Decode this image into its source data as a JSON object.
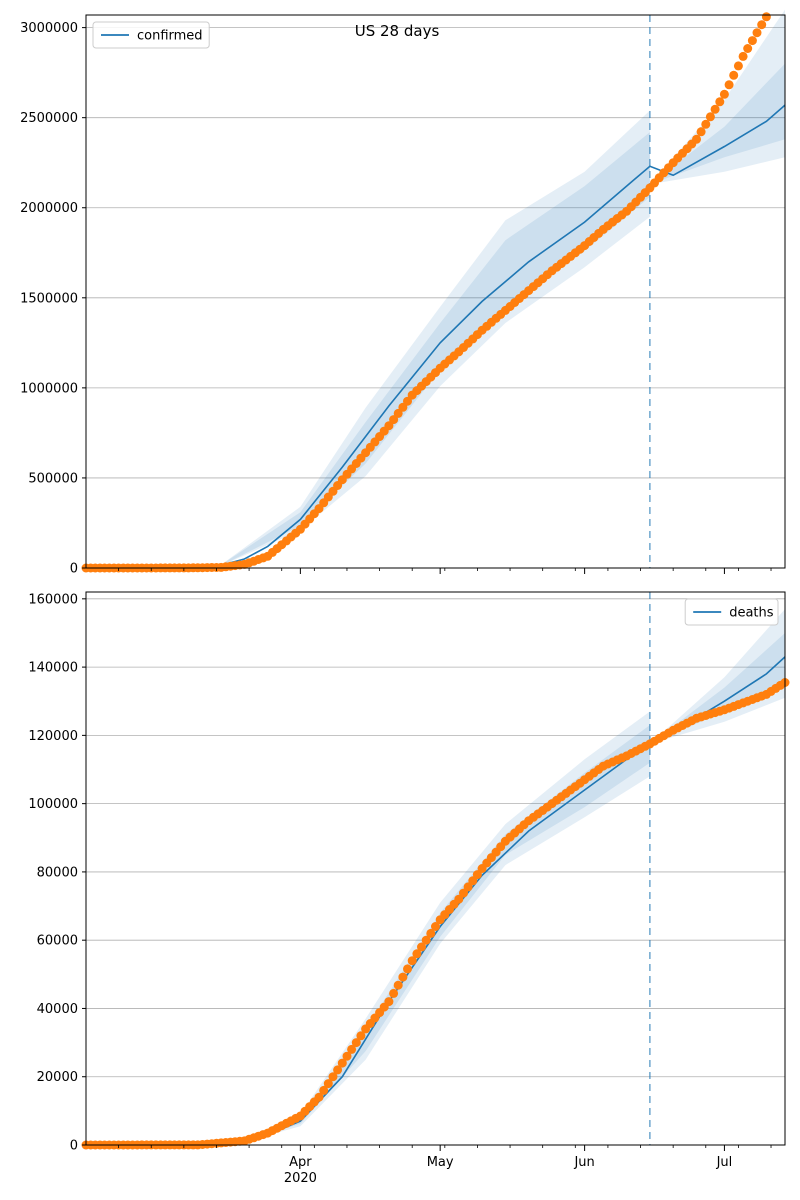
{
  "figure": {
    "title": "US 28 days",
    "x_axis": {
      "type": "date",
      "start": "2020-02-15",
      "end": "2020-07-14",
      "major_ticks": [
        {
          "date": "2020-04-01",
          "label": "Apr",
          "sublabel": "2020"
        },
        {
          "date": "2020-05-01",
          "label": "May",
          "sublabel": ""
        },
        {
          "date": "2020-06-01",
          "label": "Jun",
          "sublabel": ""
        },
        {
          "date": "2020-07-01",
          "label": "Jul",
          "sublabel": ""
        }
      ]
    },
    "forecast_start": "2020-06-15"
  },
  "colors": {
    "model_line": "#1f77b4",
    "band": "#1f77b4",
    "observed": "#ff7f0e",
    "forecast_marker": "#1f77b4",
    "grid": "#b0b0b0"
  },
  "chart_data": [
    {
      "type": "line",
      "series": [
        {
          "name": "confirmed",
          "role": "model",
          "x": [
            "2020-02-15",
            "2020-03-01",
            "2020-03-15",
            "2020-03-20",
            "2020-03-25",
            "2020-04-01",
            "2020-04-10",
            "2020-04-20",
            "2020-05-01",
            "2020-05-10",
            "2020-05-20",
            "2020-06-01",
            "2020-06-10",
            "2020-06-15",
            "2020-06-20",
            "2020-07-01",
            "2020-07-10",
            "2020-07-14"
          ],
          "y": [
            0,
            2000,
            15000,
            50000,
            120000,
            270000,
            560000,
            900000,
            1250000,
            1480000,
            1700000,
            1920000,
            2120000,
            2230000,
            2180000,
            2340000,
            2480000,
            2570000
          ],
          "bands": [
            {
              "x": [
                "2020-03-15",
                "2020-04-01",
                "2020-04-15",
                "2020-05-01",
                "2020-05-15",
                "2020-06-01",
                "2020-06-15"
              ],
              "low": [
                12000,
                210000,
                510000,
                1010000,
                1360000,
                1670000,
                1950000
              ],
              "high": [
                18000,
                340000,
                890000,
                1450000,
                1930000,
                2200000,
                2540000
              ]
            },
            {
              "x": [
                "2020-03-15",
                "2020-04-01",
                "2020-04-15",
                "2020-05-01",
                "2020-05-15",
                "2020-06-01",
                "2020-06-15"
              ],
              "low": [
                13000,
                235000,
                580000,
                1100000,
                1450000,
                1760000,
                2060000
              ],
              "high": [
                17000,
                310000,
                810000,
                1360000,
                1820000,
                2120000,
                2420000
              ]
            },
            {
              "x": [
                "2020-06-15",
                "2020-07-01",
                "2020-07-14"
              ],
              "low": [
                2130000,
                2200000,
                2280000
              ],
              "high": [
                2130000,
                2600000,
                3100000
              ]
            },
            {
              "x": [
                "2020-06-15",
                "2020-07-01",
                "2020-07-14"
              ],
              "low": [
                2130000,
                2280000,
                2380000
              ],
              "high": [
                2130000,
                2450000,
                2800000
              ]
            }
          ]
        },
        {
          "name": "",
          "role": "observed",
          "x": [
            "2020-02-15",
            "2020-03-01",
            "2020-03-10",
            "2020-03-15",
            "2020-03-20",
            "2020-03-25",
            "2020-04-01",
            "2020-04-05",
            "2020-04-10",
            "2020-04-15",
            "2020-04-20",
            "2020-04-25",
            "2020-05-01",
            "2020-05-05",
            "2020-05-10",
            "2020-05-15",
            "2020-05-20",
            "2020-05-25",
            "2020-06-01",
            "2020-06-05",
            "2020-06-10",
            "2020-06-15",
            "2020-06-20",
            "2020-06-25",
            "2020-07-01",
            "2020-07-05",
            "2020-07-10"
          ],
          "y": [
            0,
            200,
            1000,
            3500,
            20000,
            65000,
            215000,
            330000,
            490000,
            640000,
            790000,
            960000,
            1110000,
            1200000,
            1320000,
            1430000,
            1540000,
            1650000,
            1790000,
            1880000,
            1980000,
            2110000,
            2250000,
            2380000,
            2630000,
            2840000,
            3060000
          ]
        }
      ],
      "legend": {
        "entries": [
          "confirmed"
        ],
        "placement": "top-left"
      },
      "ylim": [
        0,
        3070000
      ],
      "yticks": [
        0,
        500000,
        1000000,
        1500000,
        2000000,
        2500000,
        3000000
      ],
      "ytick_labels": [
        "0",
        "500000",
        "1000000",
        "1500000",
        "2000000",
        "2500000",
        "3000000"
      ],
      "grid": "y"
    },
    {
      "type": "line",
      "series": [
        {
          "name": "deaths",
          "role": "model",
          "x": [
            "2020-02-15",
            "2020-03-15",
            "2020-03-25",
            "2020-04-01",
            "2020-04-10",
            "2020-04-20",
            "2020-05-01",
            "2020-05-10",
            "2020-05-20",
            "2020-06-01",
            "2020-06-10",
            "2020-06-15",
            "2020-06-20",
            "2020-07-01",
            "2020-07-10",
            "2020-07-14"
          ],
          "y": [
            0,
            600,
            3000,
            7000,
            20000,
            42000,
            64000,
            79000,
            92000,
            104000,
            113000,
            117500,
            121000,
            130000,
            138000,
            143000
          ],
          "bands": [
            {
              "x": [
                "2020-03-20",
                "2020-04-01",
                "2020-04-15",
                "2020-05-01",
                "2020-05-15",
                "2020-06-01",
                "2020-06-15"
              ],
              "low": [
                1000,
                5500,
                25000,
                59000,
                82000,
                96000,
                108000
              ],
              "high": [
                1600,
                9000,
                37000,
                71000,
                94000,
                113000,
                127000
              ]
            },
            {
              "x": [
                "2020-03-20",
                "2020-04-01",
                "2020-04-15",
                "2020-05-01",
                "2020-05-15",
                "2020-06-01",
                "2020-06-15"
              ],
              "low": [
                1100,
                6200,
                27500,
                61000,
                85000,
                99000,
                112000
              ],
              "high": [
                1500,
                8200,
                34000,
                68000,
                91000,
                109000,
                123000
              ]
            },
            {
              "x": [
                "2020-06-15",
                "2020-07-01",
                "2020-07-14"
              ],
              "low": [
                117500,
                124000,
                131000
              ],
              "high": [
                117500,
                137000,
                157000
              ]
            },
            {
              "x": [
                "2020-06-15",
                "2020-07-01",
                "2020-07-14"
              ],
              "low": [
                117500,
                127000,
                135000
              ],
              "high": [
                117500,
                134000,
                150000
              ]
            }
          ]
        },
        {
          "name": "",
          "role": "observed",
          "x": [
            "2020-02-15",
            "2020-03-10",
            "2020-03-20",
            "2020-03-25",
            "2020-04-01",
            "2020-04-05",
            "2020-04-10",
            "2020-04-15",
            "2020-04-20",
            "2020-04-25",
            "2020-05-01",
            "2020-05-05",
            "2020-05-10",
            "2020-05-15",
            "2020-05-20",
            "2020-05-25",
            "2020-06-01",
            "2020-06-05",
            "2020-06-10",
            "2020-06-15",
            "2020-06-20",
            "2020-06-25",
            "2020-07-01",
            "2020-07-05",
            "2020-07-10",
            "2020-07-14"
          ],
          "y": [
            0,
            30,
            1200,
            3500,
            8500,
            14000,
            24000,
            34000,
            42000,
            54000,
            66000,
            72000,
            81000,
            89000,
            95000,
            100000,
            107000,
            111000,
            114000,
            117500,
            121500,
            125000,
            127500,
            129500,
            132000,
            135500
          ]
        }
      ],
      "legend": {
        "entries": [
          "deaths"
        ],
        "placement": "top-right"
      },
      "ylim": [
        0,
        162000
      ],
      "yticks": [
        0,
        20000,
        40000,
        60000,
        80000,
        100000,
        120000,
        140000,
        160000
      ],
      "ytick_labels": [
        "0",
        "20000",
        "40000",
        "60000",
        "80000",
        "100000",
        "120000",
        "140000",
        "160000"
      ],
      "grid": "y"
    }
  ]
}
